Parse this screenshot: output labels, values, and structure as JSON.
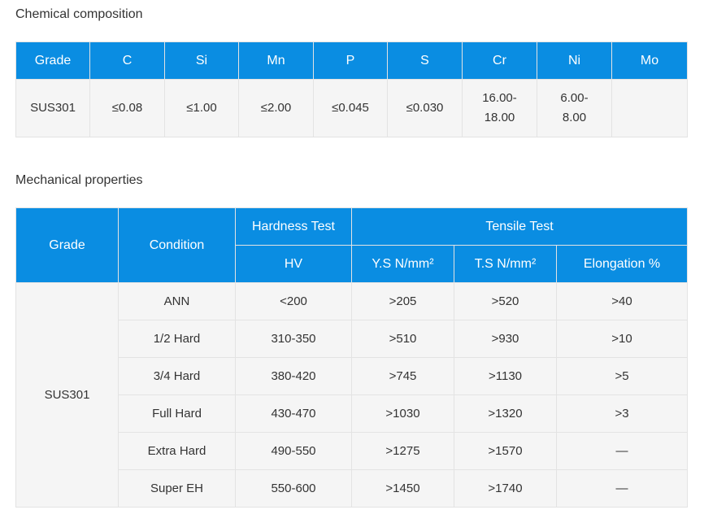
{
  "chemical": {
    "title": "Chemical composition",
    "headers": [
      "Grade",
      "C",
      "Si",
      "Mn",
      "P",
      "S",
      "Cr",
      "Ni",
      "Mo"
    ],
    "row": [
      "SUS301",
      "≤0.08",
      "≤1.00",
      "≤2.00",
      "≤0.045",
      "≤0.030",
      "16.00-\n18.00",
      "6.00-\n8.00",
      ""
    ]
  },
  "mechanical": {
    "title": "Mechanical properties",
    "headers": {
      "grade": "Grade",
      "condition": "Condition",
      "hardness_test": "Hardness Test",
      "tensile_test": "Tensile Test",
      "hv": "HV",
      "ys": "Y.S N/mm²",
      "ts": "T.S N/mm²",
      "elongation": "Elongation %"
    },
    "grade": "SUS301",
    "rows": [
      {
        "condition": "ANN",
        "hv": "<200",
        "ys": ">205",
        "ts": ">520",
        "elongation": ">40"
      },
      {
        "condition": "1/2 Hard",
        "hv": "310-350",
        "ys": ">510",
        "ts": ">930",
        "elongation": ">10"
      },
      {
        "condition": "3/4 Hard",
        "hv": "380-420",
        "ys": ">745",
        "ts": ">1130",
        "elongation": ">5"
      },
      {
        "condition": "Full Hard",
        "hv": "430-470",
        "ys": ">1030",
        "ts": ">1320",
        "elongation": ">3"
      },
      {
        "condition": "Extra Hard",
        "hv": "490-550",
        "ys": ">1275",
        "ts": ">1570",
        "elongation": "—"
      },
      {
        "condition": "Super EH",
        "hv": "550-600",
        "ys": ">1450",
        "ts": ">1740",
        "elongation": "—"
      }
    ]
  }
}
